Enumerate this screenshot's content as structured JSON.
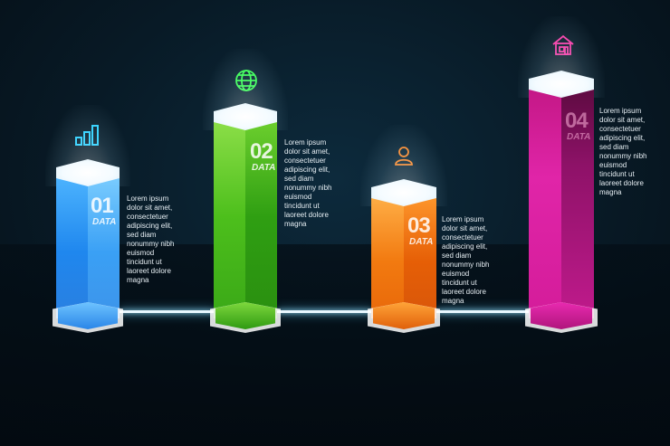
{
  "steps": [
    {
      "number": "01",
      "label": "DATA",
      "icon": "bar-chart-icon",
      "text": "Lorem ipsum\ndolor sit amet,\nconsectetuer\nadipiscing elit,\nsed diam\nnonummy nibh\neuismod\ntincidunt ut\nlaoreet dolore\nmagna",
      "color": "#2b8ff0"
    },
    {
      "number": "02",
      "label": "DATA",
      "icon": "globe-icon",
      "text": "Lorem ipsum\ndolor sit amet,\nconsectetuer\nadipiscing elit,\nsed diam\nnonummy nibh\neuismod\ntincidunt ut\nlaoreet dolore\nmagna",
      "color": "#4fbf1a"
    },
    {
      "number": "03",
      "label": "DATA",
      "icon": "user-icon",
      "text": "Lorem ipsum\ndolor sit amet,\nconsectetuer\nadipiscing elit,\nsed diam\nnonummy nibh\neuismod\ntincidunt ut\nlaoreet dolore\nmagna",
      "color": "#f47d12"
    },
    {
      "number": "04",
      "label": "DATA",
      "icon": "home-icon",
      "text": "Lorem ipsum\ndolor sit amet,\nconsectetuer\nadipiscing elit,\nsed diam\nnonummy nibh\neuismod\ntincidunt ut\nlaoreet dolore\nmagna",
      "color": "#d61f9e"
    }
  ],
  "colors": {
    "background": "#081a26",
    "bar1": "#2b8ff0",
    "bar2": "#4fbf1a",
    "bar3": "#f47d12",
    "bar4": "#d61f9e",
    "connector": "#e8f7ff"
  }
}
